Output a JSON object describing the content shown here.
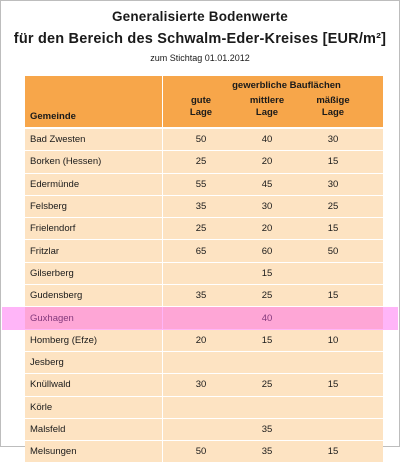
{
  "header": {
    "title_line1": "Generalisierte Bodenwerte",
    "title_line2": "für den Bereich des Schwalm-Eder-Kreises [EUR/m²]",
    "subtitle": "zum Stichtag 01.01.2012"
  },
  "table": {
    "group_header": "gewerbliche Bauflächen",
    "columns": {
      "gemeinde": "Gemeinde",
      "gute_l1": "gute",
      "gute_l2": "Lage",
      "mittlere_l1": "mittlere",
      "mittlere_l2": "Lage",
      "maessige_l1": "mäßige",
      "maessige_l2": "Lage"
    },
    "rows": [
      {
        "name": "Bad Zwesten",
        "gute": "50",
        "mittlere": "40",
        "maessige": "30"
      },
      {
        "name": "Borken (Hessen)",
        "gute": "25",
        "mittlere": "20",
        "maessige": "15"
      },
      {
        "name": "Edermünde",
        "gute": "55",
        "mittlere": "45",
        "maessige": "30"
      },
      {
        "name": "Felsberg",
        "gute": "35",
        "mittlere": "30",
        "maessige": "25"
      },
      {
        "name": "Frielendorf",
        "gute": "25",
        "mittlere": "20",
        "maessige": "15"
      },
      {
        "name": "Fritzlar",
        "gute": "65",
        "mittlere": "60",
        "maessige": "50"
      },
      {
        "name": "Gilserberg",
        "gute": "",
        "mittlere": "15",
        "maessige": ""
      },
      {
        "name": "Gudensberg",
        "gute": "35",
        "mittlere": "25",
        "maessige": "15"
      },
      {
        "name": "Guxhagen",
        "gute": "",
        "mittlere": "40",
        "maessige": ""
      },
      {
        "name": "Homberg (Efze)",
        "gute": "20",
        "mittlere": "15",
        "maessige": "10"
      },
      {
        "name": "Jesberg",
        "gute": "",
        "mittlere": "",
        "maessige": ""
      },
      {
        "name": "Knüllwald",
        "gute": "30",
        "mittlere": "25",
        "maessige": "15"
      },
      {
        "name": "Körle",
        "gute": "",
        "mittlere": "",
        "maessige": ""
      },
      {
        "name": "Malsfeld",
        "gute": "",
        "mittlere": "35",
        "maessige": ""
      },
      {
        "name": "Melsungen",
        "gute": "50",
        "mittlere": "35",
        "maessige": "15"
      }
    ]
  },
  "highlight_color": "#ff5af0"
}
